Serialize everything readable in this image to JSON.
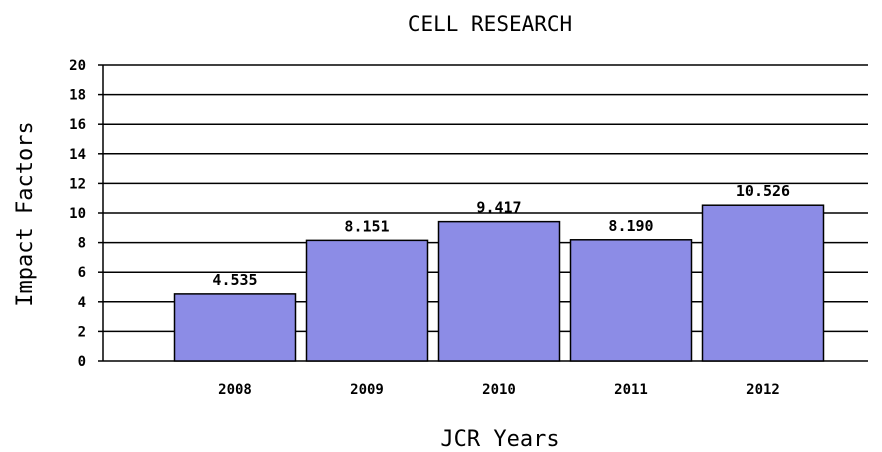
{
  "chart_data": {
    "type": "bar",
    "title": "CELL RESEARCH",
    "xlabel": "JCR Years",
    "ylabel": "Impact Factors",
    "categories": [
      "2008",
      "2009",
      "2010",
      "2011",
      "2012"
    ],
    "values": [
      4.535,
      8.151,
      9.417,
      8.19,
      10.526
    ],
    "value_labels": [
      "4.535",
      "8.151",
      "9.417",
      "8.190",
      "10.526"
    ],
    "ylim": [
      0,
      20
    ],
    "yticks": [
      "0",
      "2",
      "4",
      "6",
      "8",
      "10",
      "12",
      "14",
      "16",
      "18",
      "20"
    ],
    "grid": true,
    "bar_color": "#8c8ce6",
    "legend": "none"
  }
}
